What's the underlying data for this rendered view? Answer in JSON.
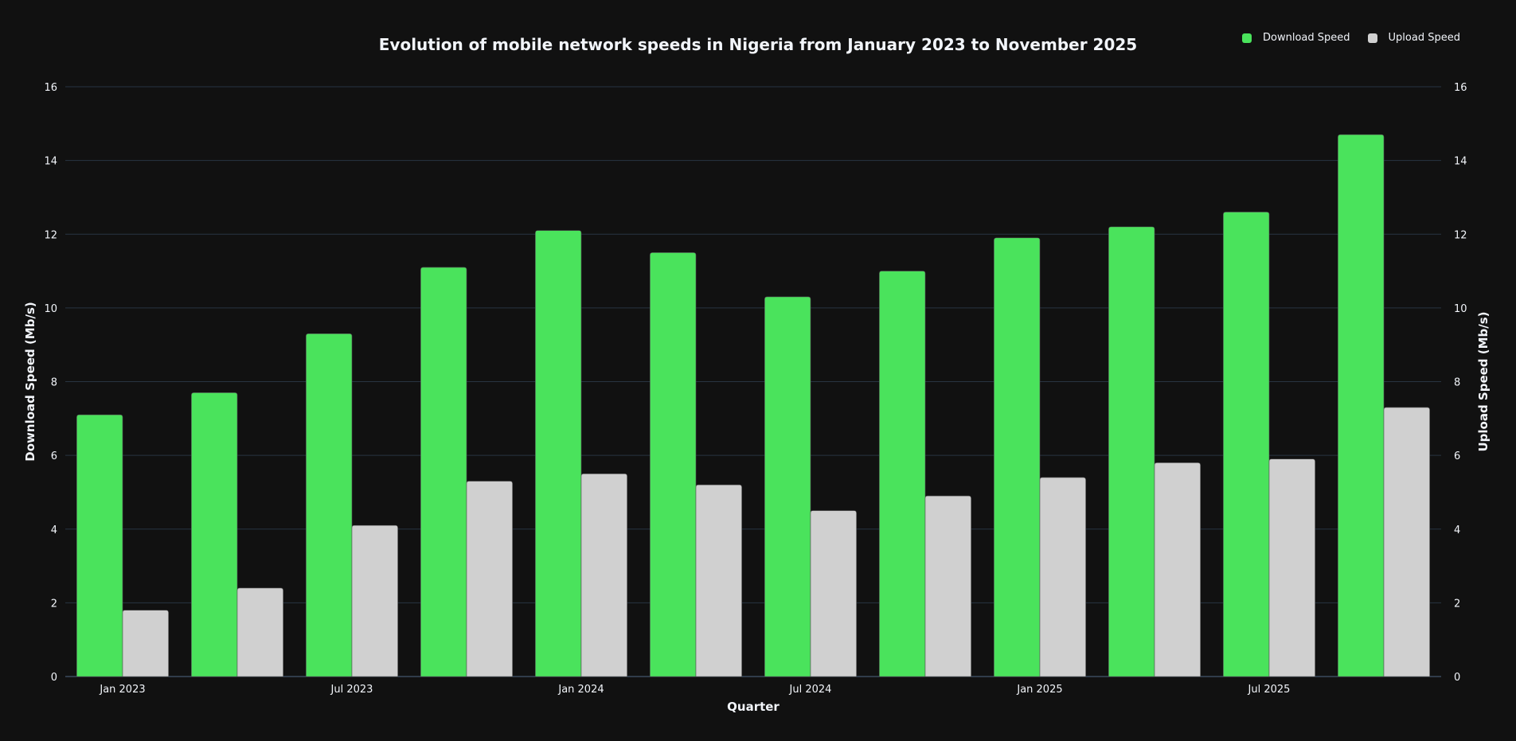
{
  "chart_data": {
    "type": "bar",
    "title": "Evolution of mobile network speeds in Nigeria from January 2023 to November 2025",
    "xlabel": "Quarter",
    "ylabel": "Download Speed (Mb/s)",
    "y2label": "Upload Speed (Mb/s)",
    "x": [
      "2023-01",
      "2023-04",
      "2023-07",
      "2023-10",
      "2024-01",
      "2024-04",
      "2024-07",
      "2024-10",
      "2025-01",
      "2025-04",
      "2025-07",
      "2025-10"
    ],
    "xticks": [
      {
        "x": "2023-01",
        "label": "Jan 2023"
      },
      {
        "x": "2023-07",
        "label": "Jul 2023"
      },
      {
        "x": "2024-01",
        "label": "Jan 2024"
      },
      {
        "x": "2024-07",
        "label": "Jul 2024"
      },
      {
        "x": "2025-01",
        "label": "Jan 2025"
      },
      {
        "x": "2025-07",
        "label": "Jul 2025"
      }
    ],
    "yticks": [
      "0",
      "2",
      "4",
      "6",
      "8",
      "10",
      "12",
      "14",
      "16"
    ],
    "ylim": [
      0,
      16
    ],
    "y2lim": [
      0,
      16
    ],
    "grid": true,
    "legend_position": "top-right",
    "series": [
      {
        "name": "Download Speed",
        "axis": "left",
        "color": "#4ae35c",
        "values": [
          7.1,
          7.7,
          9.3,
          11.1,
          12.1,
          11.5,
          10.3,
          11.0,
          11.9,
          12.2,
          12.6,
          14.7
        ]
      },
      {
        "name": "Upload Speed",
        "axis": "right",
        "color": "#d0d0d0",
        "values": [
          1.8,
          2.4,
          4.1,
          5.3,
          5.5,
          5.2,
          4.5,
          4.9,
          5.4,
          5.8,
          5.9,
          7.3
        ]
      }
    ],
    "colors": {
      "background": "#111111",
      "grid": "#283442",
      "text": "#f2f5fa"
    }
  }
}
